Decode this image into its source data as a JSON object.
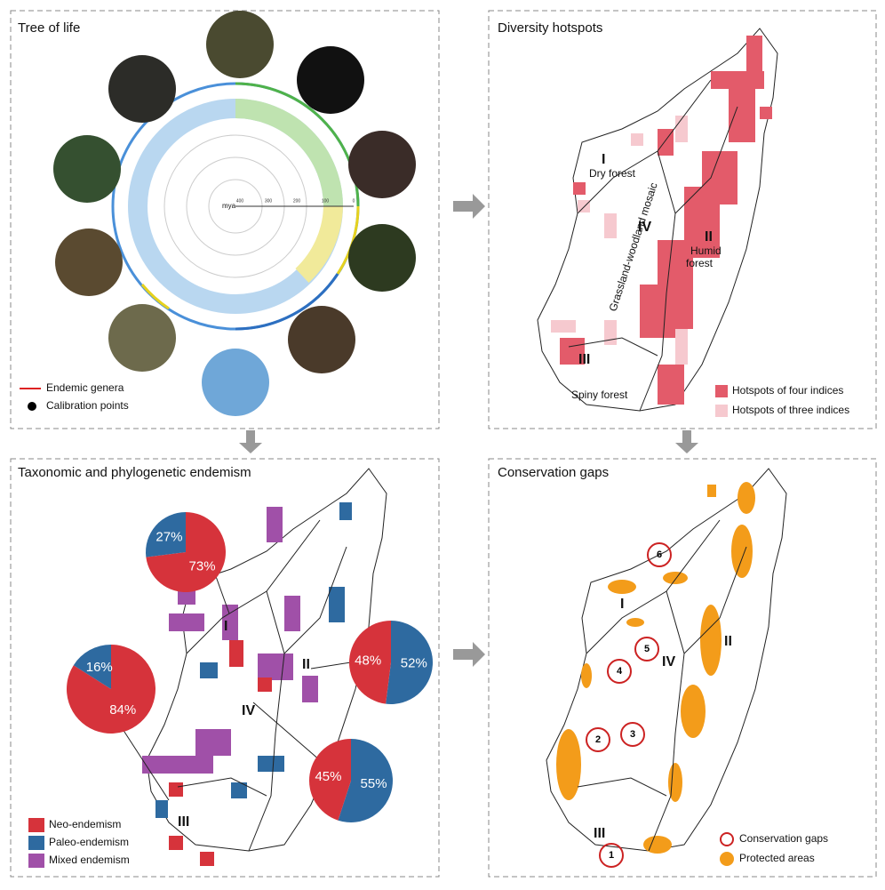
{
  "panels": [
    {
      "title": "Tree of life",
      "axis_label": "mya",
      "axis_ticks": [
        "400",
        "300",
        "200",
        "100",
        "0"
      ],
      "legend": [
        "Endemic genera",
        "Calibration points"
      ]
    },
    {
      "title": "Diversity hotspots",
      "regions": [
        "I",
        "Dry forest",
        "II",
        "Humid",
        "forest",
        "III",
        "Spiny forest",
        "IV",
        "Grassland-woodland mosaic"
      ],
      "legend": [
        "Hotspots of four indices",
        "Hotspots of three indices"
      ]
    },
    {
      "title": "Taxonomic and phylogenetic endemism",
      "regions": [
        "I",
        "II",
        "III",
        "IV"
      ],
      "pies": [
        {
          "values": [
            73,
            27
          ],
          "value_labels": [
            "73%",
            "27%"
          ]
        },
        {
          "values": [
            48,
            52
          ],
          "value_labels": [
            "48%",
            "52%"
          ]
        },
        {
          "values": [
            84,
            16
          ],
          "value_labels": [
            "84%",
            "16%"
          ]
        },
        {
          "values": [
            45,
            55
          ],
          "value_labels": [
            "45%",
            "55%"
          ]
        }
      ],
      "legend": [
        "Neo-endemism",
        "Paleo-endemism",
        "Mixed endemism"
      ]
    },
    {
      "title": "Conservation gaps",
      "regions": [
        "I",
        "II",
        "III",
        "IV"
      ],
      "gaps": [
        "1",
        "2",
        "3",
        "4",
        "5",
        "6"
      ],
      "legend": [
        "Conservation gaps",
        "Protected areas"
      ]
    }
  ]
}
